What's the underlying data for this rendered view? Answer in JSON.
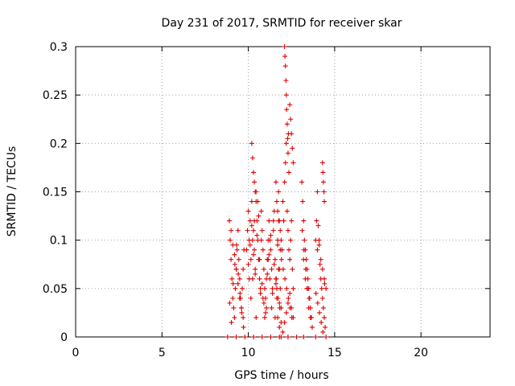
{
  "chart_data": {
    "type": "scatter",
    "title": "Day 231 of 2017, SRMTID for receiver skar",
    "xlabel": "GPS time / hours",
    "ylabel": "SRMTID / TECUs",
    "xlim": [
      0,
      24
    ],
    "ylim": [
      0,
      0.3
    ],
    "xticks": [
      0,
      5,
      10,
      15,
      20
    ],
    "xtick_labels": [
      "0",
      "5",
      "10",
      "15",
      "20"
    ],
    "yticks": [
      0,
      0.05,
      0.1,
      0.15,
      0.2,
      0.25,
      0.3
    ],
    "ytick_labels": [
      "0",
      "0.05",
      "0.1",
      "0.15",
      "0.2",
      "0.25",
      "0.3"
    ],
    "grid": true,
    "marker": "+",
    "color": "#e00000",
    "series": [
      {
        "name": "skar",
        "x": [
          8.9,
          8.95,
          9.0,
          9.05,
          9.1,
          9.15,
          9.2,
          9.25,
          9.3,
          9.35,
          9.4,
          9.45,
          9.5,
          9.55,
          9.6,
          9.65,
          9.7,
          9.75,
          8.92,
          9.02,
          9.12,
          9.22,
          9.32,
          9.42,
          9.52,
          9.62,
          9.72,
          9.0,
          9.1,
          9.2,
          9.3,
          9.4,
          9.5,
          9.6,
          9.7,
          9.9,
          9.95,
          10.0,
          10.05,
          10.1,
          10.15,
          10.2,
          10.25,
          10.3,
          10.35,
          10.4,
          10.45,
          10.5,
          10.55,
          10.6,
          10.65,
          10.7,
          10.75,
          10.8,
          10.85,
          10.9,
          10.95,
          11.0,
          11.05,
          11.1,
          11.15,
          11.2,
          11.25,
          11.3,
          11.35,
          11.4,
          11.45,
          11.5,
          11.55,
          11.6,
          11.65,
          11.7,
          11.75,
          11.8,
          11.85,
          11.9,
          11.95,
          10.0,
          10.1,
          10.2,
          10.3,
          10.4,
          10.5,
          10.6,
          10.7,
          10.8,
          10.9,
          11.0,
          11.1,
          11.2,
          11.3,
          11.4,
          11.5,
          11.6,
          11.7,
          11.8,
          11.9,
          10.05,
          10.15,
          10.25,
          10.35,
          10.45,
          10.55,
          10.65,
          10.75,
          10.85,
          10.95,
          11.05,
          11.15,
          11.25,
          11.35,
          11.45,
          11.55,
          11.65,
          11.75,
          11.85,
          10.2,
          10.25,
          10.3,
          10.35,
          10.4,
          10.45,
          11.6,
          11.65,
          11.7,
          11.75,
          11.8,
          11.85,
          11.9,
          11.95,
          12.0,
          12.05,
          12.1,
          12.15,
          12.2,
          12.25,
          12.3,
          12.35,
          12.4,
          12.45,
          12.5,
          12.55,
          12.6,
          11.62,
          11.72,
          11.82,
          11.92,
          12.02,
          12.12,
          12.22,
          12.32,
          12.42,
          12.52,
          12.1,
          12.12,
          12.15,
          12.18,
          12.2,
          12.22,
          12.25,
          12.28,
          12.3,
          12.32,
          12.35,
          12.4,
          12.45,
          12.5,
          12.55,
          12.6,
          11.7,
          11.8,
          11.9,
          12.0,
          12.1,
          12.2,
          12.3,
          12.4,
          12.5,
          12.6,
          13.1,
          13.15,
          13.2,
          13.25,
          13.3,
          13.35,
          13.4,
          13.45,
          13.5,
          13.55,
          13.6,
          13.65,
          13.7,
          13.12,
          13.22,
          13.32,
          13.42,
          13.52,
          13.62,
          13.2,
          13.3,
          13.4,
          13.5,
          13.6,
          13.9,
          13.95,
          14.0,
          14.05,
          14.1,
          14.15,
          14.2,
          14.25,
          14.3,
          14.35,
          14.4,
          14.45,
          13.92,
          14.02,
          14.12,
          14.22,
          14.32,
          14.42,
          14.3,
          14.32,
          14.35,
          14.38,
          14.4,
          14.0,
          14.1,
          14.2,
          14.3,
          14.4,
          14.5,
          8.8,
          9.3,
          9.8,
          10.3,
          10.8,
          11.3,
          11.8,
          12.3,
          12.8,
          13.2,
          13.9,
          14.5
        ],
        "y": [
          0.12,
          0.1,
          0.08,
          0.06,
          0.04,
          0.03,
          0.02,
          0.05,
          0.07,
          0.09,
          0.11,
          0.08,
          0.06,
          0.04,
          0.03,
          0.05,
          0.07,
          0.09,
          0.035,
          0.015,
          0.055,
          0.075,
          0.095,
          0.065,
          0.045,
          0.025,
          0.01,
          0.11,
          0.095,
          0.085,
          0.07,
          0.055,
          0.04,
          0.03,
          0.02,
          0.09,
          0.11,
          0.13,
          0.1,
          0.12,
          0.08,
          0.14,
          0.06,
          0.11,
          0.09,
          0.07,
          0.15,
          0.12,
          0.1,
          0.08,
          0.06,
          0.05,
          0.13,
          0.11,
          0.09,
          0.07,
          0.05,
          0.04,
          0.03,
          0.08,
          0.1,
          0.12,
          0.06,
          0.09,
          0.07,
          0.05,
          0.11,
          0.13,
          0.08,
          0.06,
          0.04,
          0.1,
          0.12,
          0.07,
          0.05,
          0.03,
          0.09,
          0.075,
          0.095,
          0.115,
          0.085,
          0.065,
          0.105,
          0.125,
          0.045,
          0.055,
          0.035,
          0.025,
          0.065,
          0.085,
          0.105,
          0.045,
          0.075,
          0.055,
          0.095,
          0.035,
          0.015,
          0.06,
          0.04,
          0.1,
          0.12,
          0.02,
          0.14,
          0.08,
          0.1,
          0.04,
          0.02,
          0.06,
          0.08,
          0.1,
          0.03,
          0.12,
          0.02,
          0.05,
          0.07,
          0.09,
          0.2,
          0.185,
          0.17,
          0.16,
          0.15,
          0.14,
          0.16,
          0.14,
          0.13,
          0.15,
          0.12,
          0.11,
          0.1,
          0.09,
          0.14,
          0.12,
          0.16,
          0.18,
          0.2,
          0.13,
          0.11,
          0.09,
          0.08,
          0.1,
          0.12,
          0.07,
          0.05,
          0.06,
          0.04,
          0.03,
          0.08,
          0.07,
          0.06,
          0.05,
          0.04,
          0.03,
          0.02,
          0.3,
          0.29,
          0.28,
          0.265,
          0.25,
          0.235,
          0.22,
          0.205,
          0.19,
          0.21,
          0.17,
          0.24,
          0.225,
          0.21,
          0.195,
          0.18,
          0.02,
          0.01,
          0.0,
          0.005,
          0.015,
          0.025,
          0.035,
          0.045,
          0.03,
          0.02,
          0.16,
          0.14,
          0.12,
          0.1,
          0.09,
          0.08,
          0.07,
          0.06,
          0.05,
          0.04,
          0.03,
          0.02,
          0.01,
          0.11,
          0.09,
          0.07,
          0.05,
          0.04,
          0.02,
          0.08,
          0.06,
          0.05,
          0.03,
          0.02,
          0.1,
          0.12,
          0.15,
          0.115,
          0.095,
          0.075,
          0.06,
          0.05,
          0.04,
          0.03,
          0.02,
          0.01,
          0.045,
          0.035,
          0.025,
          0.015,
          0.005,
          0.055,
          0.18,
          0.17,
          0.16,
          0.15,
          0.14,
          0.09,
          0.1,
          0.08,
          0.07,
          0.06,
          0.05,
          0.0,
          0.0,
          0.0,
          0.0,
          0.0,
          0.0,
          0.0,
          0.0,
          0.0,
          0.0,
          0.0,
          0.0
        ]
      }
    ]
  }
}
